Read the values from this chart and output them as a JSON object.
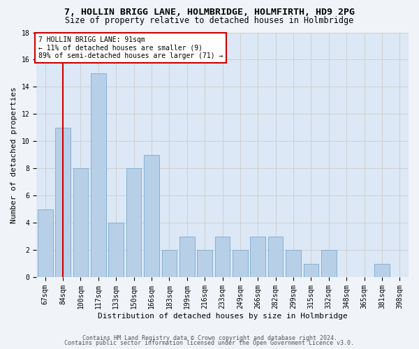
{
  "title1": "7, HOLLIN BRIGG LANE, HOLMBRIDGE, HOLMFIRTH, HD9 2PG",
  "title2": "Size of property relative to detached houses in Holmbridge",
  "xlabel": "Distribution of detached houses by size in Holmbridge",
  "ylabel": "Number of detached properties",
  "categories": [
    "67sqm",
    "84sqm",
    "100sqm",
    "117sqm",
    "133sqm",
    "150sqm",
    "166sqm",
    "183sqm",
    "199sqm",
    "216sqm",
    "233sqm",
    "249sqm",
    "266sqm",
    "282sqm",
    "299sqm",
    "315sqm",
    "332sqm",
    "348sqm",
    "365sqm",
    "381sqm",
    "398sqm"
  ],
  "values": [
    5,
    11,
    8,
    15,
    4,
    8,
    9,
    2,
    3,
    2,
    3,
    2,
    3,
    3,
    2,
    1,
    2,
    0,
    0,
    1,
    0
  ],
  "bar_color": "#b8cfe8",
  "bar_edge_color": "#7aaad0",
  "vline_x_index": 1,
  "vline_color": "#cc0000",
  "annotation_line1": "7 HOLLIN BRIGG LANE: 91sqm",
  "annotation_line2": "← 11% of detached houses are smaller (9)",
  "annotation_line3": "89% of semi-detached houses are larger (71) →",
  "annotation_box_color": "#ffffff",
  "annotation_box_edge": "#cc0000",
  "ylim": [
    0,
    18
  ],
  "yticks": [
    0,
    2,
    4,
    6,
    8,
    10,
    12,
    14,
    16,
    18
  ],
  "grid_color": "#cccccc",
  "plot_bg_color": "#dce8f5",
  "fig_bg_color": "#f0f4f8",
  "footer1": "Contains HM Land Registry data © Crown copyright and database right 2024.",
  "footer2": "Contains public sector information licensed under the Open Government Licence v3.0.",
  "title1_fontsize": 9.5,
  "title2_fontsize": 8.5,
  "xlabel_fontsize": 8,
  "ylabel_fontsize": 8,
  "tick_fontsize": 7,
  "annot_fontsize": 7,
  "footer_fontsize": 6
}
